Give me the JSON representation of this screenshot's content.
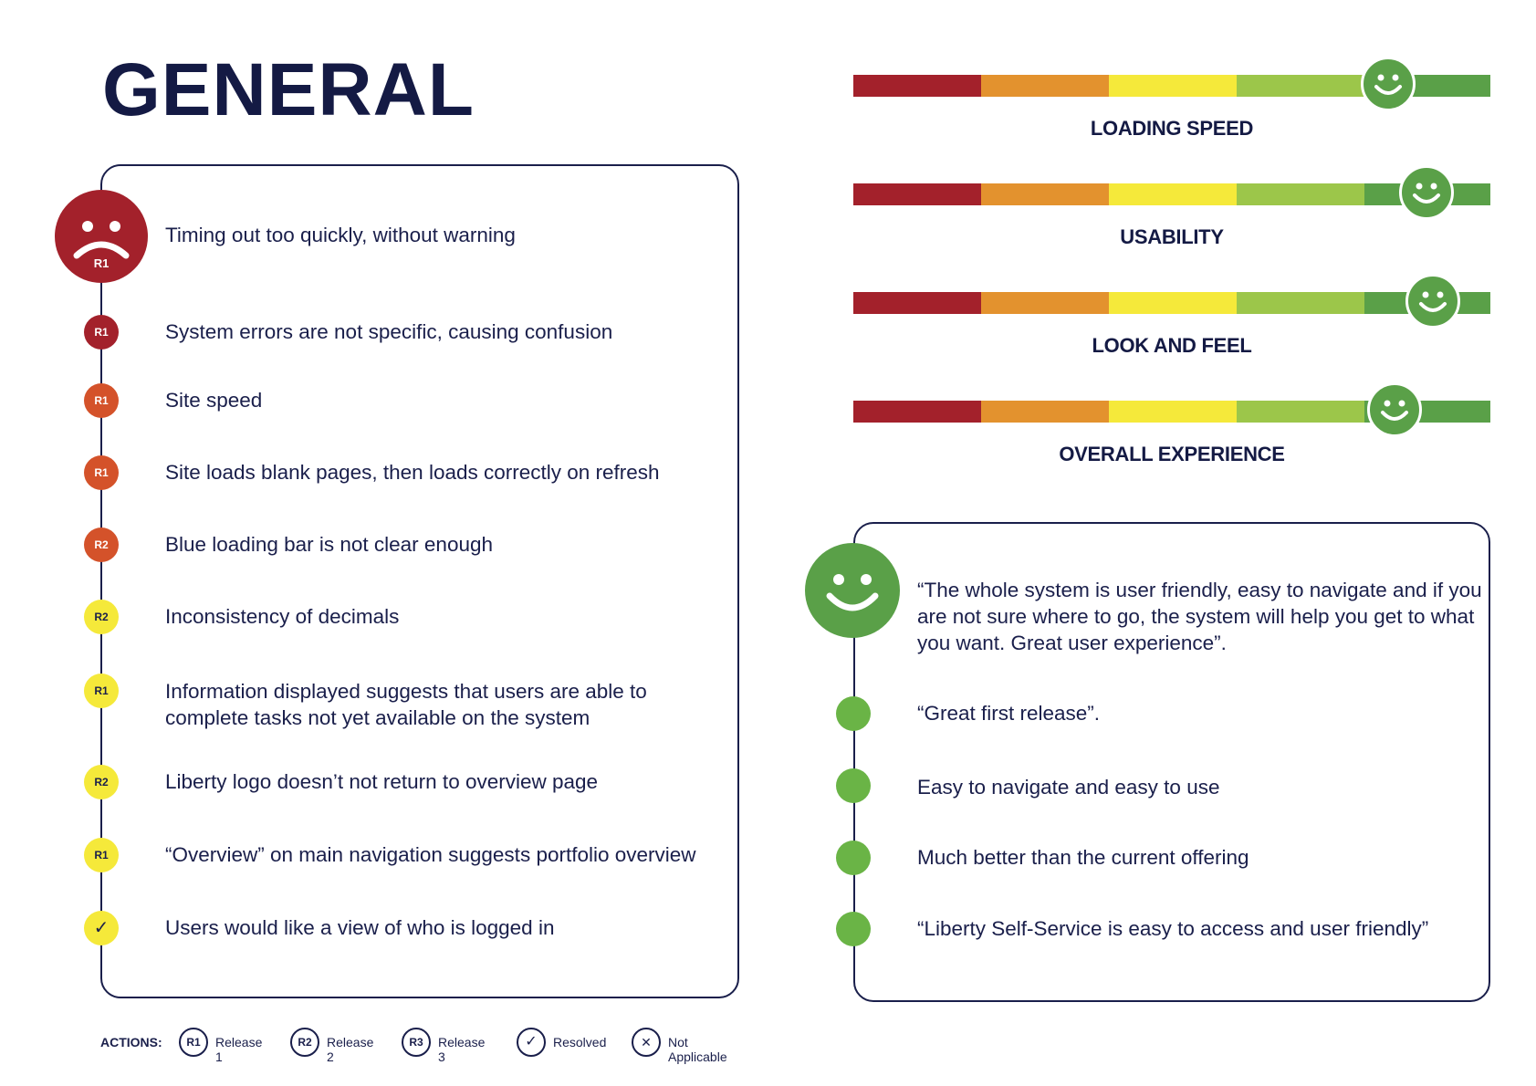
{
  "title": "GENERAL",
  "colors": {
    "navy": "#1a1f4b",
    "dark_red": "#a3212b",
    "red_orange": "#d4522a",
    "yellow": "#f5e93a",
    "green": "#5aa048",
    "light_green": "#6ab446"
  },
  "issues": {
    "main": {
      "text": "Timing out too quickly, without warning",
      "tag": "R1",
      "icon": "sad-face-icon"
    },
    "items": [
      {
        "tag": "R1",
        "text": "System errors are not specific, causing confusion"
      },
      {
        "tag": "R1",
        "text": "Site speed"
      },
      {
        "tag": "R1",
        "text": "Site loads blank pages, then loads correctly on refresh"
      },
      {
        "tag": "R2",
        "text": "Blue loading bar is not clear enough"
      },
      {
        "tag": "R2",
        "text": "Inconsistency of decimals"
      },
      {
        "tag": "R1",
        "text": "Information displayed suggests that users are able to complete tasks not yet available on the system"
      },
      {
        "tag": "R2",
        "text": "Liberty logo doesn’t not return to overview page"
      },
      {
        "tag": "R1",
        "text": "“Overview” on main navigation suggests portfolio overview"
      },
      {
        "tag": "✓",
        "text": "Users would like a view of who is logged in"
      }
    ]
  },
  "ratings": [
    {
      "label": "LOADING SPEED",
      "level": 0.84
    },
    {
      "label": "USABILITY",
      "level": 0.9
    },
    {
      "label": "LOOK AND FEEL",
      "level": 0.91
    },
    {
      "label": "OVERALL EXPERIENCE",
      "level": 0.85
    }
  ],
  "praise": [
    {
      "text": "“The whole system is user friendly, easy to navigate and if you are not sure where to go, the system will help you get to what you want. Great user experience”."
    },
    {
      "text": "“Great first release”."
    },
    {
      "text": "Easy to navigate and easy to use"
    },
    {
      "text": "Much better than the current offering"
    },
    {
      "text": "“Liberty Self-Service is easy to access and user friendly”"
    }
  ],
  "legend": {
    "title": "ACTIONS:",
    "items": [
      {
        "symbol": "R1",
        "label": "Release 1"
      },
      {
        "symbol": "R2",
        "label": "Release 2"
      },
      {
        "symbol": "R3",
        "label": "Release 3"
      },
      {
        "symbol": "✓",
        "label": "Resolved"
      },
      {
        "symbol": "✕",
        "label": "Not Applicable"
      }
    ]
  }
}
